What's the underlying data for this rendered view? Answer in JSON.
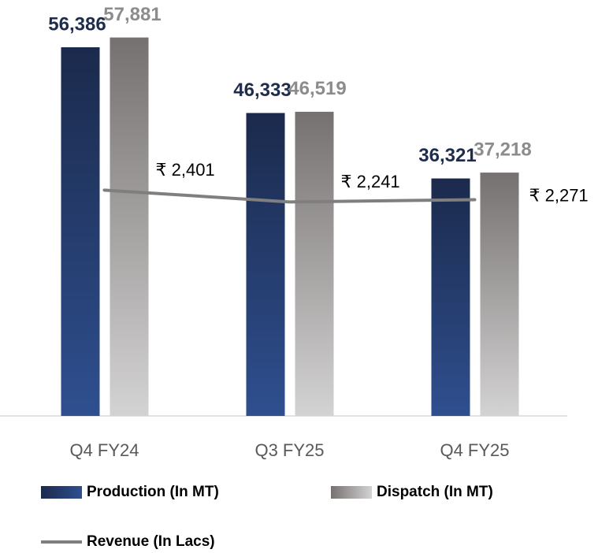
{
  "chart_data": {
    "type": "bar",
    "categories": [
      "Q4 FY24",
      "Q3 FY25",
      "Q4 FY25"
    ],
    "series": [
      {
        "name": "Production (In MT)",
        "color": "#2f4f8f",
        "values": [
          56386,
          46333,
          36321
        ],
        "value_labels": [
          "56,386",
          "46,333",
          "36,321"
        ]
      },
      {
        "name": "Dispatch (In MT)",
        "color": "#d4d3d3",
        "values": [
          57881,
          46519,
          37218
        ],
        "value_labels": [
          "57,881",
          "46,519",
          "37,218"
        ]
      },
      {
        "name": "Revenue (In Lacs)",
        "type": "line",
        "axis": "y2",
        "color": "#7f7f7f",
        "values": [
          2401,
          2241,
          2271
        ],
        "value_labels": [
          "₹ 2,401",
          "₹ 2,241",
          "₹ 2,271"
        ]
      }
    ],
    "ylim": [
      0,
      60000
    ],
    "y2lim": [
      -650,
      4650
    ]
  }
}
